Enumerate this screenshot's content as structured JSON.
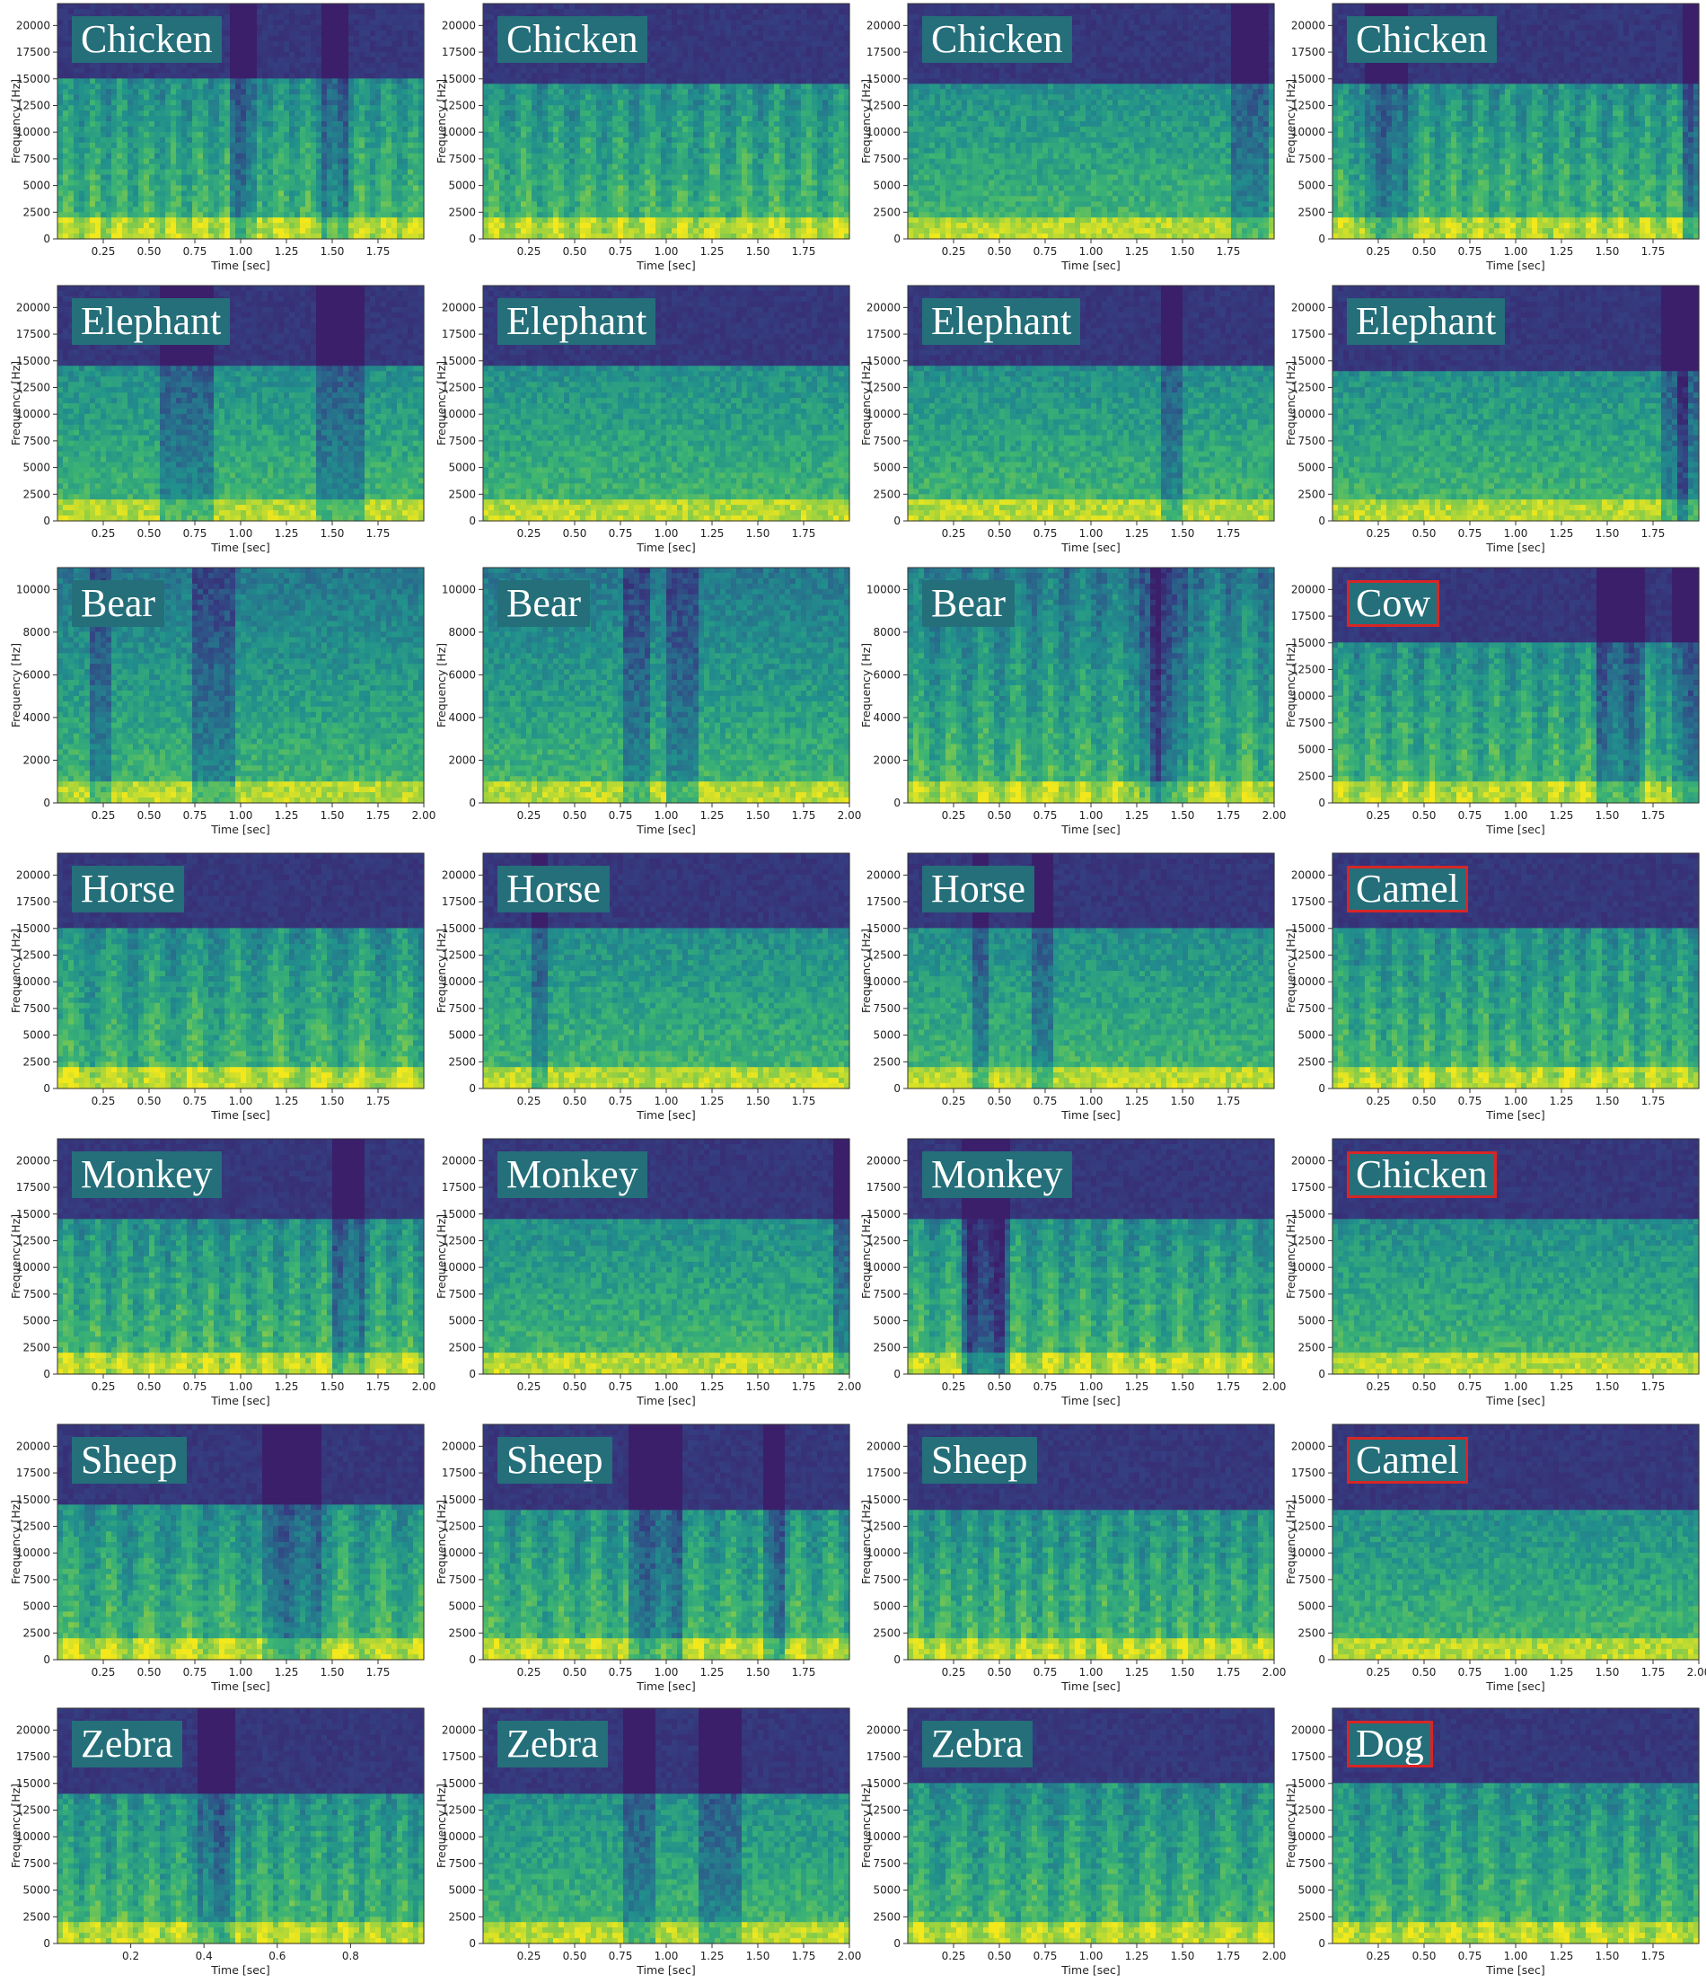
{
  "chart_data": {
    "type": "heatmap",
    "layout": {
      "rows": 7,
      "cols": 4
    },
    "colors": {
      "low": "#3b1f6b",
      "mid": "#208f8a",
      "high": "#f2e81c",
      "flag_border": "#d72626",
      "label_bg": "#246f79"
    },
    "panels": [
      {
        "label": "Chicken",
        "flagged": false,
        "xlabel": "Time [sec]",
        "ylabel": "Frequency [Hz]",
        "xticks": [
          "0.25",
          "0.50",
          "0.75",
          "1.00",
          "1.25",
          "1.50",
          "1.75"
        ],
        "yticks": [
          "0",
          "2500",
          "5000",
          "7500",
          "10000",
          "12500",
          "15000",
          "17500",
          "20000"
        ],
        "xlim": [
          0,
          2.0
        ],
        "ylim": [
          0,
          22050
        ]
      },
      {
        "label": "Chicken",
        "flagged": false,
        "xlabel": "Time [sec]",
        "ylabel": "Frequency [Hz]",
        "xticks": [
          "0.25",
          "0.50",
          "0.75",
          "1.00",
          "1.25",
          "1.50",
          "1.75"
        ],
        "yticks": [
          "0",
          "2500",
          "5000",
          "7500",
          "10000",
          "12500",
          "15000",
          "17500",
          "20000"
        ],
        "xlim": [
          0,
          2.0
        ],
        "ylim": [
          0,
          22050
        ]
      },
      {
        "label": "Chicken",
        "flagged": false,
        "xlabel": "Time [sec]",
        "ylabel": "Frequency [Hz]",
        "xticks": [
          "0.25",
          "0.50",
          "0.75",
          "1.00",
          "1.25",
          "1.50",
          "1.75"
        ],
        "yticks": [
          "0",
          "2500",
          "5000",
          "7500",
          "10000",
          "12500",
          "15000",
          "17500",
          "20000"
        ],
        "xlim": [
          0,
          2.0
        ],
        "ylim": [
          0,
          22050
        ]
      },
      {
        "label": "Chicken",
        "flagged": false,
        "xlabel": "Time [sec]",
        "ylabel": "Frequency [Hz]",
        "xticks": [
          "0.25",
          "0.50",
          "0.75",
          "1.00",
          "1.25",
          "1.50",
          "1.75"
        ],
        "yticks": [
          "0",
          "2500",
          "5000",
          "7500",
          "10000",
          "12500",
          "15000",
          "17500",
          "20000"
        ],
        "xlim": [
          0,
          2.0
        ],
        "ylim": [
          0,
          22050
        ]
      },
      {
        "label": "Elephant",
        "flagged": false,
        "xlabel": "Time [sec]",
        "ylabel": "Frequency [Hz]",
        "xticks": [
          "0.25",
          "0.50",
          "0.75",
          "1.00",
          "1.25",
          "1.50",
          "1.75"
        ],
        "yticks": [
          "0",
          "2500",
          "5000",
          "7500",
          "10000",
          "12500",
          "15000",
          "17500",
          "20000"
        ],
        "xlim": [
          0,
          2.0
        ],
        "ylim": [
          0,
          22050
        ]
      },
      {
        "label": "Elephant",
        "flagged": false,
        "xlabel": "Time [sec]",
        "ylabel": "Frequency [Hz]",
        "xticks": [
          "0.25",
          "0.50",
          "0.75",
          "1.00",
          "1.25",
          "1.50",
          "1.75"
        ],
        "yticks": [
          "0",
          "2500",
          "5000",
          "7500",
          "10000",
          "12500",
          "15000",
          "17500",
          "20000"
        ],
        "xlim": [
          0,
          2.0
        ],
        "ylim": [
          0,
          22050
        ]
      },
      {
        "label": "Elephant",
        "flagged": false,
        "xlabel": "Time [sec]",
        "ylabel": "Frequency [Hz]",
        "xticks": [
          "0.25",
          "0.50",
          "0.75",
          "1.00",
          "1.25",
          "1.50",
          "1.75"
        ],
        "yticks": [
          "0",
          "2500",
          "5000",
          "7500",
          "10000",
          "12500",
          "15000",
          "17500",
          "20000"
        ],
        "xlim": [
          0,
          2.0
        ],
        "ylim": [
          0,
          22050
        ]
      },
      {
        "label": "Elephant",
        "flagged": false,
        "xlabel": "Time [sec]",
        "ylabel": "Frequency [Hz]",
        "xticks": [
          "0.25",
          "0.50",
          "0.75",
          "1.00",
          "1.25",
          "1.50",
          "1.75"
        ],
        "yticks": [
          "0",
          "2500",
          "5000",
          "7500",
          "10000",
          "12500",
          "15000",
          "17500",
          "20000"
        ],
        "xlim": [
          0,
          2.0
        ],
        "ylim": [
          0,
          22050
        ]
      },
      {
        "label": "Bear",
        "flagged": false,
        "xlabel": "Time [sec]",
        "ylabel": "Frequency [Hz]",
        "xticks": [
          "0.25",
          "0.50",
          "0.75",
          "1.00",
          "1.25",
          "1.50",
          "1.75",
          "2.00"
        ],
        "yticks": [
          "0",
          "2000",
          "4000",
          "6000",
          "8000",
          "10000"
        ],
        "xlim": [
          0,
          2.0
        ],
        "ylim": [
          0,
          11025
        ]
      },
      {
        "label": "Bear",
        "flagged": false,
        "xlabel": "Time [sec]",
        "ylabel": "Frequency [Hz]",
        "xticks": [
          "0.25",
          "0.50",
          "0.75",
          "1.00",
          "1.25",
          "1.50",
          "1.75",
          "2.00"
        ],
        "yticks": [
          "0",
          "2000",
          "4000",
          "6000",
          "8000",
          "10000"
        ],
        "xlim": [
          0,
          2.0
        ],
        "ylim": [
          0,
          11025
        ]
      },
      {
        "label": "Bear",
        "flagged": false,
        "xlabel": "Time [sec]",
        "ylabel": "Frequency [Hz]",
        "xticks": [
          "0.25",
          "0.50",
          "0.75",
          "1.00",
          "1.25",
          "1.50",
          "1.75",
          "2.00"
        ],
        "yticks": [
          "0",
          "2000",
          "4000",
          "6000",
          "8000",
          "10000"
        ],
        "xlim": [
          0,
          2.0
        ],
        "ylim": [
          0,
          11025
        ]
      },
      {
        "label": "Cow",
        "flagged": true,
        "xlabel": "Time [sec]",
        "ylabel": "Frequency [Hz]",
        "xticks": [
          "0.25",
          "0.50",
          "0.75",
          "1.00",
          "1.25",
          "1.50",
          "1.75"
        ],
        "yticks": [
          "0",
          "2500",
          "5000",
          "7500",
          "10000",
          "12500",
          "15000",
          "17500",
          "20000"
        ],
        "xlim": [
          0,
          2.0
        ],
        "ylim": [
          0,
          22050
        ]
      },
      {
        "label": "Horse",
        "flagged": false,
        "xlabel": "Time [sec]",
        "ylabel": "Frequency [Hz]",
        "xticks": [
          "0.25",
          "0.50",
          "0.75",
          "1.00",
          "1.25",
          "1.50",
          "1.75"
        ],
        "yticks": [
          "0",
          "2500",
          "5000",
          "7500",
          "10000",
          "12500",
          "15000",
          "17500",
          "20000"
        ],
        "xlim": [
          0,
          2.0
        ],
        "ylim": [
          0,
          22050
        ]
      },
      {
        "label": "Horse",
        "flagged": false,
        "xlabel": "Time [sec]",
        "ylabel": "Frequency [Hz]",
        "xticks": [
          "0.25",
          "0.50",
          "0.75",
          "1.00",
          "1.25",
          "1.50",
          "1.75"
        ],
        "yticks": [
          "0",
          "2500",
          "5000",
          "7500",
          "10000",
          "12500",
          "15000",
          "17500",
          "20000"
        ],
        "xlim": [
          0,
          2.0
        ],
        "ylim": [
          0,
          22050
        ]
      },
      {
        "label": "Horse",
        "flagged": false,
        "xlabel": "Time [sec]",
        "ylabel": "Frequency [Hz]",
        "xticks": [
          "0.25",
          "0.50",
          "0.75",
          "1.00",
          "1.25",
          "1.50",
          "1.75"
        ],
        "yticks": [
          "0",
          "2500",
          "5000",
          "7500",
          "10000",
          "12500",
          "15000",
          "17500",
          "20000"
        ],
        "xlim": [
          0,
          2.0
        ],
        "ylim": [
          0,
          22050
        ]
      },
      {
        "label": "Camel",
        "flagged": true,
        "xlabel": "Time [sec]",
        "ylabel": "Frequency [Hz]",
        "xticks": [
          "0.25",
          "0.50",
          "0.75",
          "1.00",
          "1.25",
          "1.50",
          "1.75"
        ],
        "yticks": [
          "0",
          "2500",
          "5000",
          "7500",
          "10000",
          "12500",
          "15000",
          "17500",
          "20000"
        ],
        "xlim": [
          0,
          2.0
        ],
        "ylim": [
          0,
          22050
        ]
      },
      {
        "label": "Monkey",
        "flagged": false,
        "xlabel": "Time [sec]",
        "ylabel": "Frequency [Hz]",
        "xticks": [
          "0.25",
          "0.50",
          "0.75",
          "1.00",
          "1.25",
          "1.50",
          "1.75",
          "2.00"
        ],
        "yticks": [
          "0",
          "2500",
          "5000",
          "7500",
          "10000",
          "12500",
          "15000",
          "17500",
          "20000"
        ],
        "xlim": [
          0,
          2.0
        ],
        "ylim": [
          0,
          22050
        ]
      },
      {
        "label": "Monkey",
        "flagged": false,
        "xlabel": "Time [sec]",
        "ylabel": "Frequency [Hz]",
        "xticks": [
          "0.25",
          "0.50",
          "0.75",
          "1.00",
          "1.25",
          "1.50",
          "1.75",
          "2.00"
        ],
        "yticks": [
          "0",
          "2500",
          "5000",
          "7500",
          "10000",
          "12500",
          "15000",
          "17500",
          "20000"
        ],
        "xlim": [
          0,
          2.0
        ],
        "ylim": [
          0,
          22050
        ]
      },
      {
        "label": "Monkey",
        "flagged": false,
        "xlabel": "Time [sec]",
        "ylabel": "Frequency [Hz]",
        "xticks": [
          "0.25",
          "0.50",
          "0.75",
          "1.00",
          "1.25",
          "1.50",
          "1.75",
          "2.00"
        ],
        "yticks": [
          "0",
          "2500",
          "5000",
          "7500",
          "10000",
          "12500",
          "15000",
          "17500",
          "20000"
        ],
        "xlim": [
          0,
          2.0
        ],
        "ylim": [
          0,
          22050
        ]
      },
      {
        "label": "Chicken",
        "flagged": true,
        "xlabel": "Time [sec]",
        "ylabel": "Frequency [Hz]",
        "xticks": [
          "0.25",
          "0.50",
          "0.75",
          "1.00",
          "1.25",
          "1.50",
          "1.75"
        ],
        "yticks": [
          "0",
          "2500",
          "5000",
          "7500",
          "10000",
          "12500",
          "15000",
          "17500",
          "20000"
        ],
        "xlim": [
          0,
          2.0
        ],
        "ylim": [
          0,
          22050
        ]
      },
      {
        "label": "Sheep",
        "flagged": false,
        "xlabel": "Time [sec]",
        "ylabel": "Frequency [Hz]",
        "xticks": [
          "0.25",
          "0.50",
          "0.75",
          "1.00",
          "1.25",
          "1.50",
          "1.75"
        ],
        "yticks": [
          "0",
          "2500",
          "5000",
          "7500",
          "10000",
          "12500",
          "15000",
          "17500",
          "20000"
        ],
        "xlim": [
          0,
          2.0
        ],
        "ylim": [
          0,
          22050
        ]
      },
      {
        "label": "Sheep",
        "flagged": false,
        "xlabel": "Time [sec]",
        "ylabel": "Frequency [Hz]",
        "xticks": [
          "0.25",
          "0.50",
          "0.75",
          "1.00",
          "1.25",
          "1.50",
          "1.75"
        ],
        "yticks": [
          "0",
          "2500",
          "5000",
          "7500",
          "10000",
          "12500",
          "15000",
          "17500",
          "20000"
        ],
        "xlim": [
          0,
          2.0
        ],
        "ylim": [
          0,
          22050
        ]
      },
      {
        "label": "Sheep",
        "flagged": false,
        "xlabel": "Time [sec]",
        "ylabel": "Frequency [Hz]",
        "xticks": [
          "0.25",
          "0.50",
          "0.75",
          "1.00",
          "1.25",
          "1.50",
          "1.75",
          "2.00"
        ],
        "yticks": [
          "0",
          "2500",
          "5000",
          "7500",
          "10000",
          "12500",
          "15000",
          "17500",
          "20000"
        ],
        "xlim": [
          0,
          2.0
        ],
        "ylim": [
          0,
          22050
        ]
      },
      {
        "label": "Camel",
        "flagged": true,
        "xlabel": "Time [sec]",
        "ylabel": "Frequency [Hz]",
        "xticks": [
          "0.25",
          "0.50",
          "0.75",
          "1.00",
          "1.25",
          "1.50",
          "1.75",
          "2.00"
        ],
        "yticks": [
          "0",
          "2500",
          "5000",
          "7500",
          "10000",
          "12500",
          "15000",
          "17500",
          "20000"
        ],
        "xlim": [
          0,
          2.0
        ],
        "ylim": [
          0,
          22050
        ]
      },
      {
        "label": "Zebra",
        "flagged": false,
        "xlabel": "Time [sec]",
        "ylabel": "Frequency [Hz]",
        "xticks": [
          "0.2",
          "0.4",
          "0.6",
          "0.8"
        ],
        "yticks": [
          "0",
          "2500",
          "5000",
          "7500",
          "10000",
          "12500",
          "15000",
          "17500",
          "20000"
        ],
        "xlim": [
          0,
          1.0
        ],
        "ylim": [
          0,
          22050
        ]
      },
      {
        "label": "Zebra",
        "flagged": false,
        "xlabel": "Time [sec]",
        "ylabel": "Frequency [Hz]",
        "xticks": [
          "0.25",
          "0.50",
          "0.75",
          "1.00",
          "1.25",
          "1.50",
          "1.75",
          "2.00"
        ],
        "yticks": [
          "0",
          "2500",
          "5000",
          "7500",
          "10000",
          "12500",
          "15000",
          "17500",
          "20000"
        ],
        "xlim": [
          0,
          2.0
        ],
        "ylim": [
          0,
          22050
        ]
      },
      {
        "label": "Zebra",
        "flagged": false,
        "xlabel": "Time [sec]",
        "ylabel": "Frequency [Hz]",
        "xticks": [
          "0.25",
          "0.50",
          "0.75",
          "1.00",
          "1.25",
          "1.50",
          "1.75",
          "2.00"
        ],
        "yticks": [
          "0",
          "2500",
          "5000",
          "7500",
          "10000",
          "12500",
          "15000",
          "17500",
          "20000"
        ],
        "xlim": [
          0,
          2.0
        ],
        "ylim": [
          0,
          22050
        ]
      },
      {
        "label": "Dog",
        "flagged": true,
        "xlabel": "Time [sec]",
        "ylabel": "Frequency [Hz]",
        "xticks": [
          "0.25",
          "0.50",
          "0.75",
          "1.00",
          "1.25",
          "1.50",
          "1.75"
        ],
        "yticks": [
          "0",
          "2500",
          "5000",
          "7500",
          "10000",
          "12500",
          "15000",
          "17500",
          "20000"
        ],
        "xlim": [
          0,
          2.0
        ],
        "ylim": [
          0,
          22050
        ]
      }
    ]
  }
}
